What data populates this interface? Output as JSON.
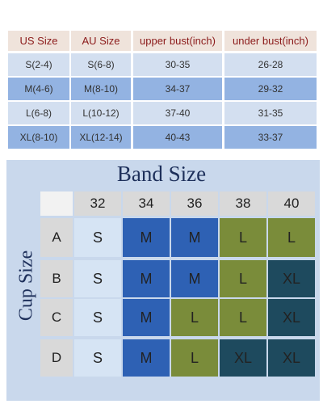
{
  "size_table": {
    "header": [
      "US Size",
      "AU Size",
      "upper bust(inch)",
      "under bust(inch)"
    ],
    "rows": [
      [
        "S(2-4)",
        "S(6-8)",
        "30-35",
        "26-28"
      ],
      [
        "M(4-6)",
        "M(8-10)",
        "34-37",
        "29-32"
      ],
      [
        "L(6-8)",
        "L(10-12)",
        "37-40",
        "31-35"
      ],
      [
        "XL(8-10)",
        "XL(12-14)",
        "40-43",
        "33-37"
      ]
    ]
  },
  "band_chart": {
    "title": "Band Size",
    "side_label": "Cup Size",
    "bands": [
      "32",
      "34",
      "36",
      "38",
      "40"
    ],
    "cups": [
      "A",
      "B",
      "C",
      "D"
    ],
    "cells": [
      [
        "S",
        "M",
        "M",
        "L",
        "L"
      ],
      [
        "S",
        "M",
        "M",
        "L",
        "XL"
      ],
      [
        "S",
        "M",
        "L",
        "L",
        "XL"
      ],
      [
        "S",
        "M",
        "L",
        "XL",
        "XL"
      ]
    ]
  }
}
